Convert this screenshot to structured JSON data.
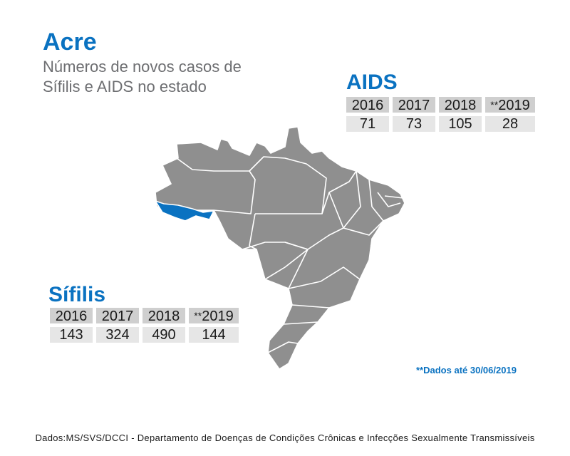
{
  "header": {
    "title": "Acre",
    "subtitle": "Números de novos casos de Sífilis e AIDS no estado"
  },
  "aids": {
    "title": "AIDS",
    "years": [
      "2016",
      "2017",
      "2018",
      "2019"
    ],
    "years_prefix": [
      "",
      "",
      "",
      "**"
    ],
    "values": [
      "71",
      "73",
      "105",
      "28"
    ]
  },
  "sifilis": {
    "title": "Sífilis",
    "years": [
      "2016",
      "2017",
      "2018",
      "2019"
    ],
    "years_prefix": [
      "",
      "",
      "",
      "**"
    ],
    "values": [
      "143",
      "324",
      "490",
      "144"
    ]
  },
  "note": "**Dados até 30/06/2019",
  "source": "Dados:MS/SVS/DCCI - Departamento de Doenças de Condições Crônicas e Infecções Sexualmente Transmissíveis",
  "colors": {
    "accent": "#0a72c1",
    "map_fill": "#8f8f8f",
    "highlight_state": "#0a72c1",
    "header_cell": "#cfcfcf",
    "value_cell": "#e6e6e6"
  }
}
